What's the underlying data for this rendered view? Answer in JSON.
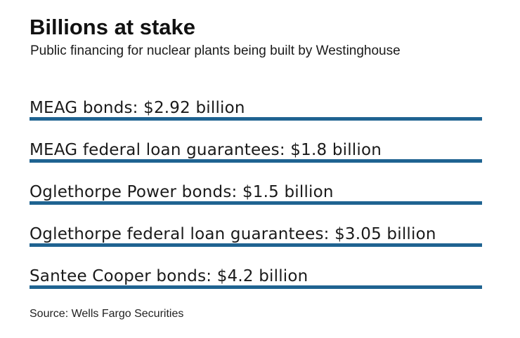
{
  "chart_data": {
    "type": "table",
    "title": "Billions at stake",
    "subtitle": "Public financing for nuclear plants being built by Westinghouse",
    "rows": [
      {
        "label": "MEAG bonds: $2.92 billion",
        "name": "MEAG bonds",
        "value": 2.92
      },
      {
        "label": "MEAG federal loan guarantees: $1.8 billion",
        "name": "MEAG federal loan guarantees",
        "value": 1.8
      },
      {
        "label": "Oglethorpe Power bonds: $1.5 billion",
        "name": "Oglethorpe Power bonds",
        "value": 1.5
      },
      {
        "label": "Oglethorpe federal loan guarantees: $3.05 billion",
        "name": "Oglethorpe federal loan guarantees",
        "value": 3.05
      },
      {
        "label": "Santee Cooper bonds: $4.2 billion",
        "name": "Santee Cooper bonds",
        "value": 4.2
      }
    ],
    "unit": "billion",
    "source": "Source: Wells Fargo Securities",
    "bar_color": "#1f6391"
  }
}
